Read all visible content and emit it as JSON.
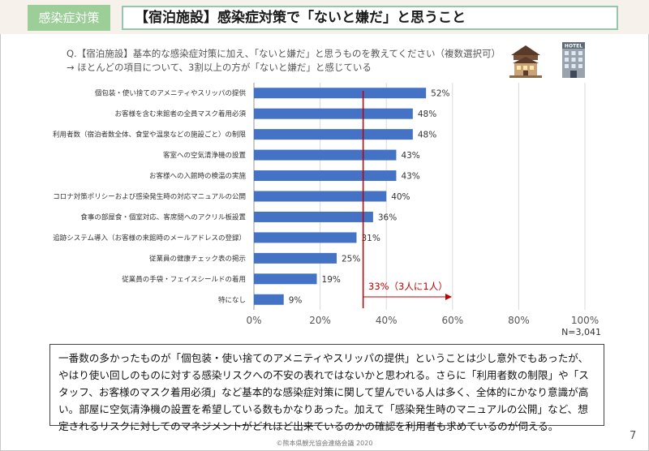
{
  "header": {
    "tag": "感染症対策",
    "title": "【宿泊施設】感染症対策で「ないと嫌だ」と思うこと"
  },
  "question": "Q.【宿泊施設】基本的な感染症対策に加え、「ないと嫌だ」と思うものを教えてください（複数選択可）",
  "note": "→ ほとんどの項目について、3割以上の方が「ないと嫌だ」と感じている",
  "icons": [
    "ryokan-icon",
    "hotel-icon"
  ],
  "hotel_sign": "HOTEL",
  "chart_data": {
    "type": "bar",
    "orientation": "horizontal",
    "categories": [
      "個包装・使い捨てのアメニティやスリッパの提供",
      "お客様を含む来館者の全員マスク着用必須",
      "利用者数（宿泊者数全体、食堂や温泉などの施設ごと）の制限",
      "客室への空気清浄機の設置",
      "お客様への入館時の検温の実施",
      "コロナ対策ポリシーおよび感染発生時の対応マニュアルの公開",
      "食事の部屋食・個室対応、客席間へのアクリル板設置",
      "追跡システム導入（お客様の来館時のメールアドレスの登録）",
      "従業員の健康チェック表の掲示",
      "従業員の手袋・フェイスシールドの着用",
      "特になし"
    ],
    "values": [
      52,
      48,
      48,
      43,
      43,
      40,
      36,
      31,
      25,
      19,
      9
    ],
    "value_labels": [
      "52%",
      "48%",
      "48%",
      "43%",
      "43%",
      "40%",
      "36%",
      "31%",
      "25%",
      "19%",
      "9%"
    ],
    "xlim": [
      0,
      100
    ],
    "xticks": [
      0,
      20,
      40,
      60,
      80,
      100
    ],
    "xtick_labels": [
      "0%",
      "20%",
      "40%",
      "60%",
      "80%",
      "100%"
    ],
    "gridlines": true,
    "bar_color": "#4472c4",
    "reference": {
      "value": 33,
      "label": "33%（3人に1人）",
      "color": "#c00000"
    },
    "n_label": "N=3,041"
  },
  "summary": "一番数の多かったものが「個包装・使い捨てのアメニティやスリッパの提供」ということは少し意外でもあったが、やはり使い回しのものに対する感染リスクへの不安の表れではないかと思われる。さらに「利用者数の制限」や「スタッフ、お客様のマスク着用必須」など基本的な感染症対策に関して望んでいる人は多く、全体的にかなり意識が高い。部屋に空気清浄機の設置を希望している数もかなりあった。加えて「感染発生時のマニュアルの公開」など、想定されるリスクに対してのマネジメントがどれほど出来ているのかの確認を利用者も求めているのが伺える。",
  "page_number": "7",
  "footer": "©熊本県観光協会連絡会議 2020"
}
